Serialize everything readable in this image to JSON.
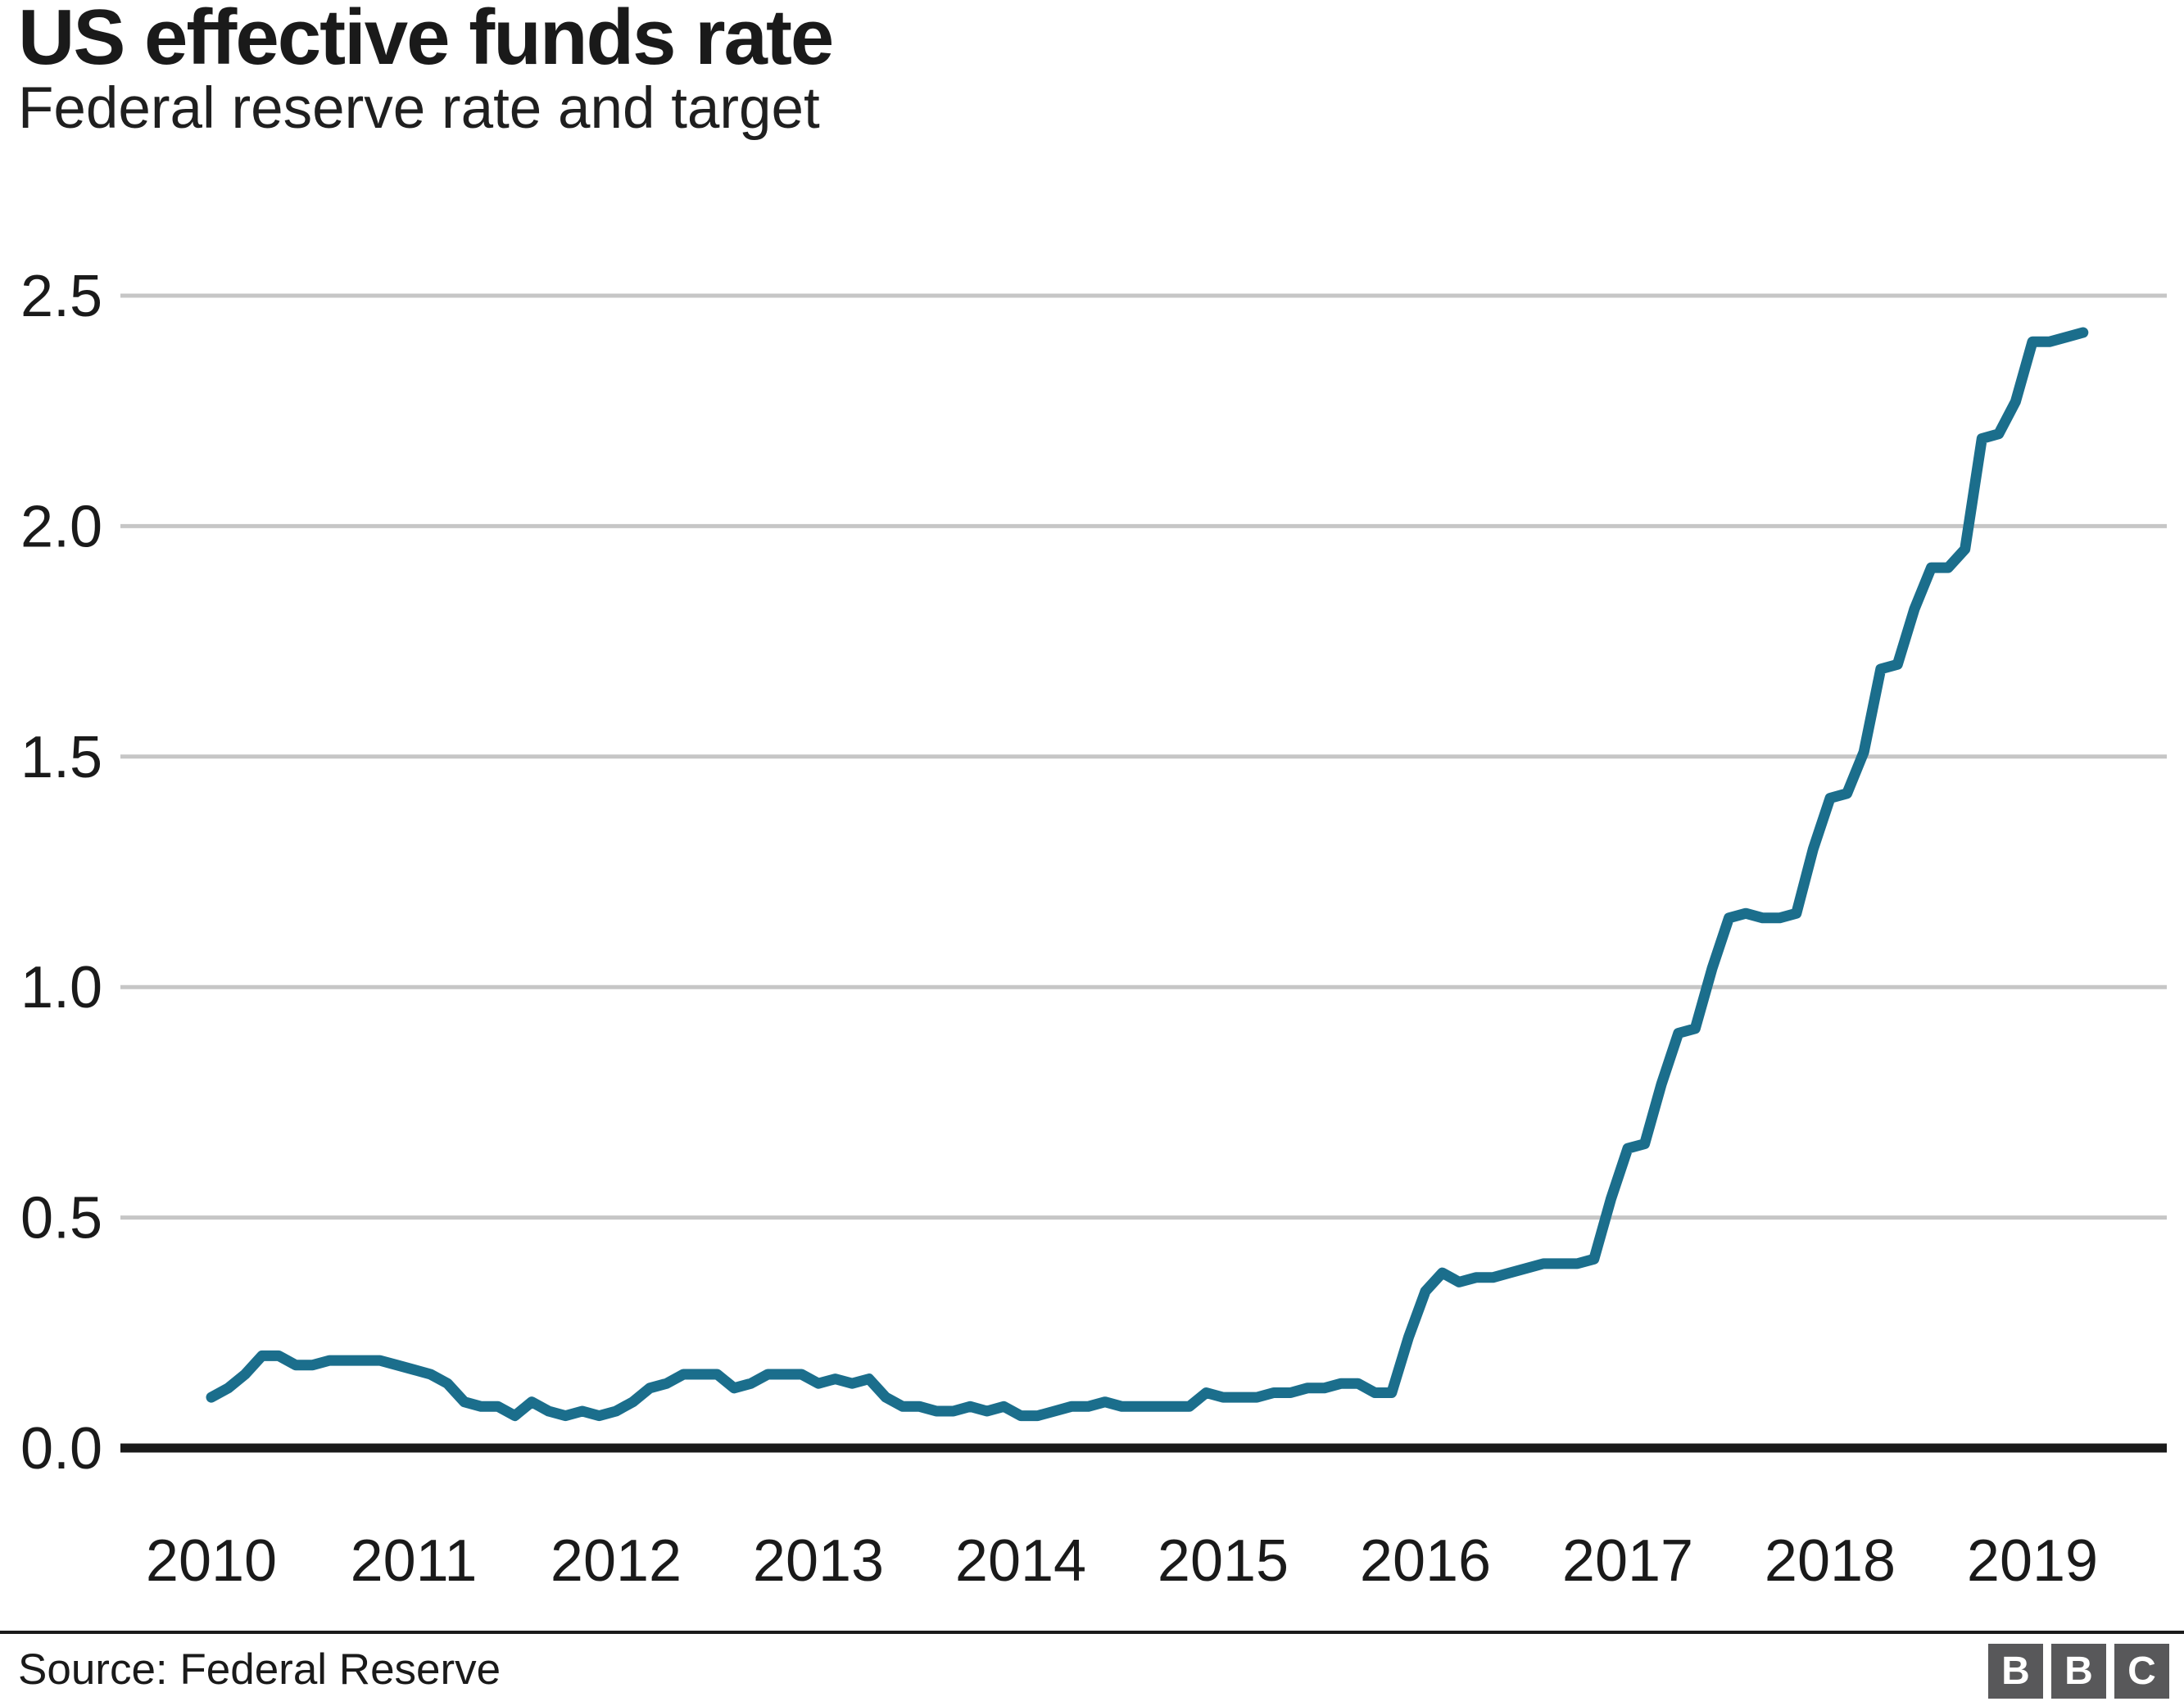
{
  "header": {
    "title": "US effective funds rate",
    "subtitle": "Federal reserve rate and target"
  },
  "footer": {
    "source": "Source: Federal Reserve",
    "logo_letters": [
      "B",
      "B",
      "C"
    ]
  },
  "colors": {
    "line": "#1b6e8c",
    "grid": "#c6c6c6",
    "axis": "#1a1a1a",
    "text": "#1a1a1a",
    "logo_bg": "#58585a"
  },
  "chart_data": {
    "type": "line",
    "title": "US effective funds rate",
    "subtitle": "Federal reserve rate and target",
    "frequency": "monthly",
    "x_start": "2010-01",
    "x_end": "2019-04",
    "x_tick_labels": [
      "2010",
      "2011",
      "2012",
      "2013",
      "2014",
      "2015",
      "2016",
      "2017",
      "2018",
      "2019"
    ],
    "y_tick_values": [
      0,
      0.5,
      1,
      1.5,
      2,
      2.5
    ],
    "y_tick_labels": [
      "0.0",
      "0.5",
      "1.0",
      "1.5",
      "2.0",
      "2.5"
    ],
    "ylim": [
      0,
      2.5
    ],
    "grid": "horizontal-only",
    "legend": "none",
    "source": "Source: Federal Reserve",
    "series": [
      {
        "name": "US effective federal funds rate",
        "color": "#1b6e8c",
        "values": [
          0.11,
          0.13,
          0.16,
          0.2,
          0.2,
          0.18,
          0.18,
          0.19,
          0.19,
          0.19,
          0.19,
          0.18,
          0.17,
          0.16,
          0.14,
          0.1,
          0.09,
          0.09,
          0.07,
          0.1,
          0.08,
          0.07,
          0.08,
          0.07,
          0.08,
          0.1,
          0.13,
          0.14,
          0.16,
          0.16,
          0.16,
          0.13,
          0.14,
          0.16,
          0.16,
          0.16,
          0.14,
          0.15,
          0.14,
          0.15,
          0.11,
          0.09,
          0.09,
          0.08,
          0.08,
          0.09,
          0.08,
          0.09,
          0.07,
          0.07,
          0.08,
          0.09,
          0.09,
          0.1,
          0.09,
          0.09,
          0.09,
          0.09,
          0.09,
          0.12,
          0.11,
          0.11,
          0.11,
          0.12,
          0.12,
          0.13,
          0.13,
          0.14,
          0.14,
          0.12,
          0.12,
          0.24,
          0.34,
          0.38,
          0.36,
          0.37,
          0.37,
          0.38,
          0.39,
          0.4,
          0.4,
          0.4,
          0.41,
          0.54,
          0.65,
          0.66,
          0.79,
          0.9,
          0.91,
          1.04,
          1.15,
          1.16,
          1.15,
          1.15,
          1.16,
          1.3,
          1.41,
          1.42,
          1.51,
          1.69,
          1.7,
          1.82,
          1.91,
          1.91,
          1.95,
          2.19,
          2.2,
          2.27,
          2.4,
          2.4,
          2.41,
          2.42
        ]
      }
    ]
  }
}
